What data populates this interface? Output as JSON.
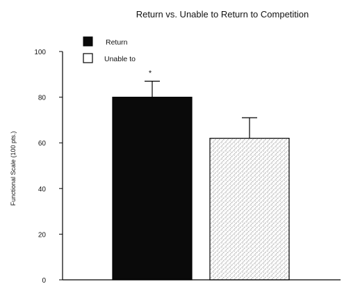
{
  "chart_data": {
    "type": "bar",
    "title": "Return vs. Unable to Return to Competition",
    "xlabel": "",
    "ylabel": "Functional Scale (100 pts.)",
    "ylim": [
      0,
      100
    ],
    "yticks": [
      "0",
      "20",
      "40",
      "60",
      "80",
      "100"
    ],
    "grid": false,
    "legend_position": "top-left",
    "series": [
      {
        "name": "Return",
        "value": 80,
        "error": 7,
        "annotation": "*",
        "fill": "solid",
        "color": "#0a0a0a"
      },
      {
        "name": "Unable to",
        "value": 62,
        "error": 9,
        "annotation": "",
        "fill": "stipple",
        "color": "#ffffff"
      }
    ]
  }
}
